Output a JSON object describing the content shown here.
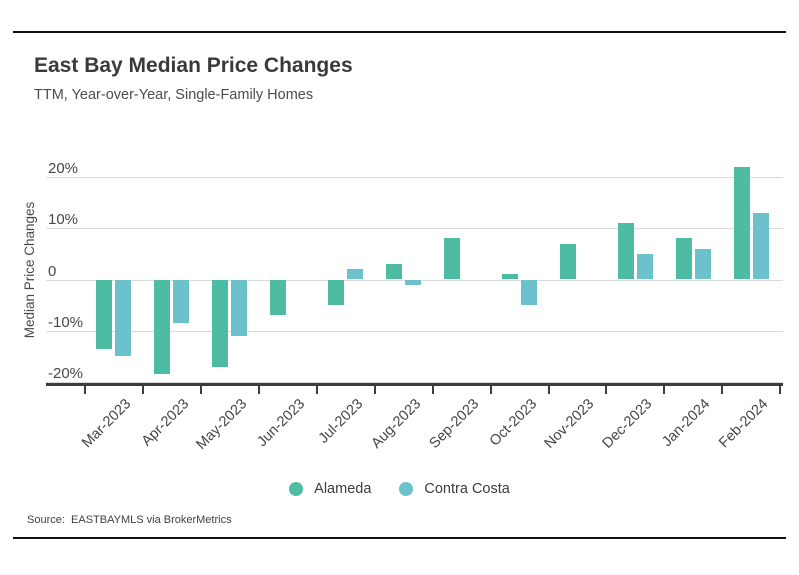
{
  "header": {
    "title": "East Bay Median Price Changes",
    "subtitle": "TTM, Year-over-Year, Single-Family Homes"
  },
  "source_note": "Source:  EASTBAYMLS via BrokerMetrics",
  "chart_data": {
    "type": "bar",
    "title": "East Bay Median Price Changes",
    "subtitle": "TTM, Year-over-Year, Single-Family Homes",
    "xlabel": "",
    "ylabel": "Median Price Changes",
    "categories": [
      "Mar-2023",
      "Apr-2023",
      "May-2023",
      "Jun-2023",
      "Jul-2023",
      "Aug-2023",
      "Sep-2023",
      "Oct-2023",
      "Nov-2023",
      "Dec-2023",
      "Jan-2024",
      "Feb-2024"
    ],
    "series": [
      {
        "name": "Alameda",
        "color": "#4ebba3",
        "values": [
          -13.5,
          -18.5,
          -17,
          -7,
          -5,
          3,
          8,
          1,
          7,
          11,
          8,
          22
        ]
      },
      {
        "name": "Contra Costa",
        "color": "#6bc1cc",
        "values": [
          -15,
          -8.5,
          -11,
          0,
          2,
          -1,
          0,
          -5,
          0,
          5,
          6,
          13
        ]
      }
    ],
    "yticks": {
      "values": [
        20,
        10,
        0,
        -10,
        -20
      ],
      "labels": [
        "20%",
        "10%",
        "0",
        "-10%",
        "-20%"
      ]
    },
    "ylim": [
      -20.5,
      23.3
    ],
    "unit": "%",
    "grid": "horizontal",
    "legend_position": "bottom"
  },
  "colors": {
    "alameda": "#4ebba3",
    "contra_costa": "#6bc1cc",
    "gridline": "#dadada",
    "axis": "#3d3d3d",
    "text_dark": "#3a3a3a"
  }
}
